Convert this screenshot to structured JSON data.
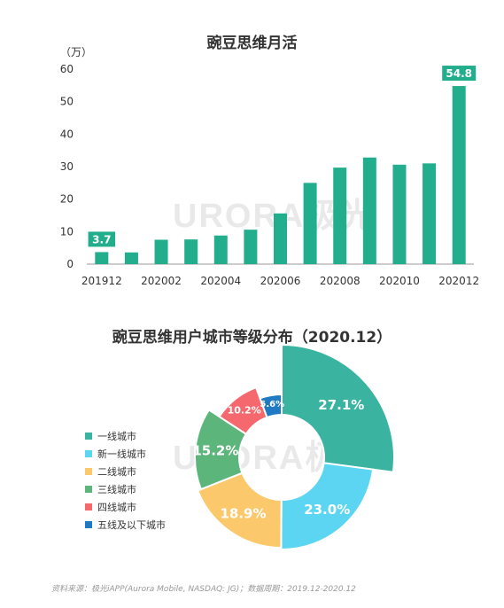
{
  "chart_data": [
    {
      "type": "bar",
      "title": "豌豆思维月活",
      "unit": "（万）",
      "categories": [
        "201912",
        "202001",
        "202002",
        "202003",
        "202004",
        "202005",
        "202006",
        "202007",
        "202008",
        "202009",
        "202010",
        "202011",
        "202012"
      ],
      "x_tick_labels": [
        "201912",
        "202002",
        "202004",
        "202006",
        "202008",
        "202010",
        "202012"
      ],
      "values": [
        3.7,
        3.6,
        7.5,
        7.6,
        8.8,
        10.6,
        15.6,
        25.0,
        29.7,
        32.8,
        30.6,
        31.0,
        54.8
      ],
      "data_labels": [
        {
          "index": 0,
          "text": "3.7"
        },
        {
          "index": 12,
          "text": "54.8"
        }
      ],
      "y_ticks": [
        0,
        10,
        20,
        30,
        40,
        50,
        60
      ],
      "ylim": [
        0,
        60
      ],
      "color": "#22ae8c"
    },
    {
      "type": "pie",
      "title": "豌豆思维用户城市等级分布（2020.12）",
      "slices": [
        {
          "name": "一线城市",
          "value": 27.1,
          "label": "27.1%",
          "color": "#3ab4a0"
        },
        {
          "name": "新一线城市",
          "value": 23.0,
          "label": "23.0%",
          "color": "#5cd5f2"
        },
        {
          "name": "二线城市",
          "value": 18.9,
          "label": "18.9%",
          "color": "#fbc86c"
        },
        {
          "name": "三线城市",
          "value": 15.2,
          "label": "15.2%",
          "color": "#5cb67b"
        },
        {
          "name": "四线城市",
          "value": 10.2,
          "label": "10.2%",
          "color": "#f5686d"
        },
        {
          "name": "五线及以下城市",
          "value": 5.6,
          "label": "5.6%",
          "color": "#1f7ac3"
        }
      ]
    }
  ],
  "watermark": {
    "text": "URORA",
    "brand": "极光"
  },
  "source": "资料来源：极光iAPP(Aurora Mobile, NASDAQ: JG)；数据周期：2019.12-2020.12"
}
